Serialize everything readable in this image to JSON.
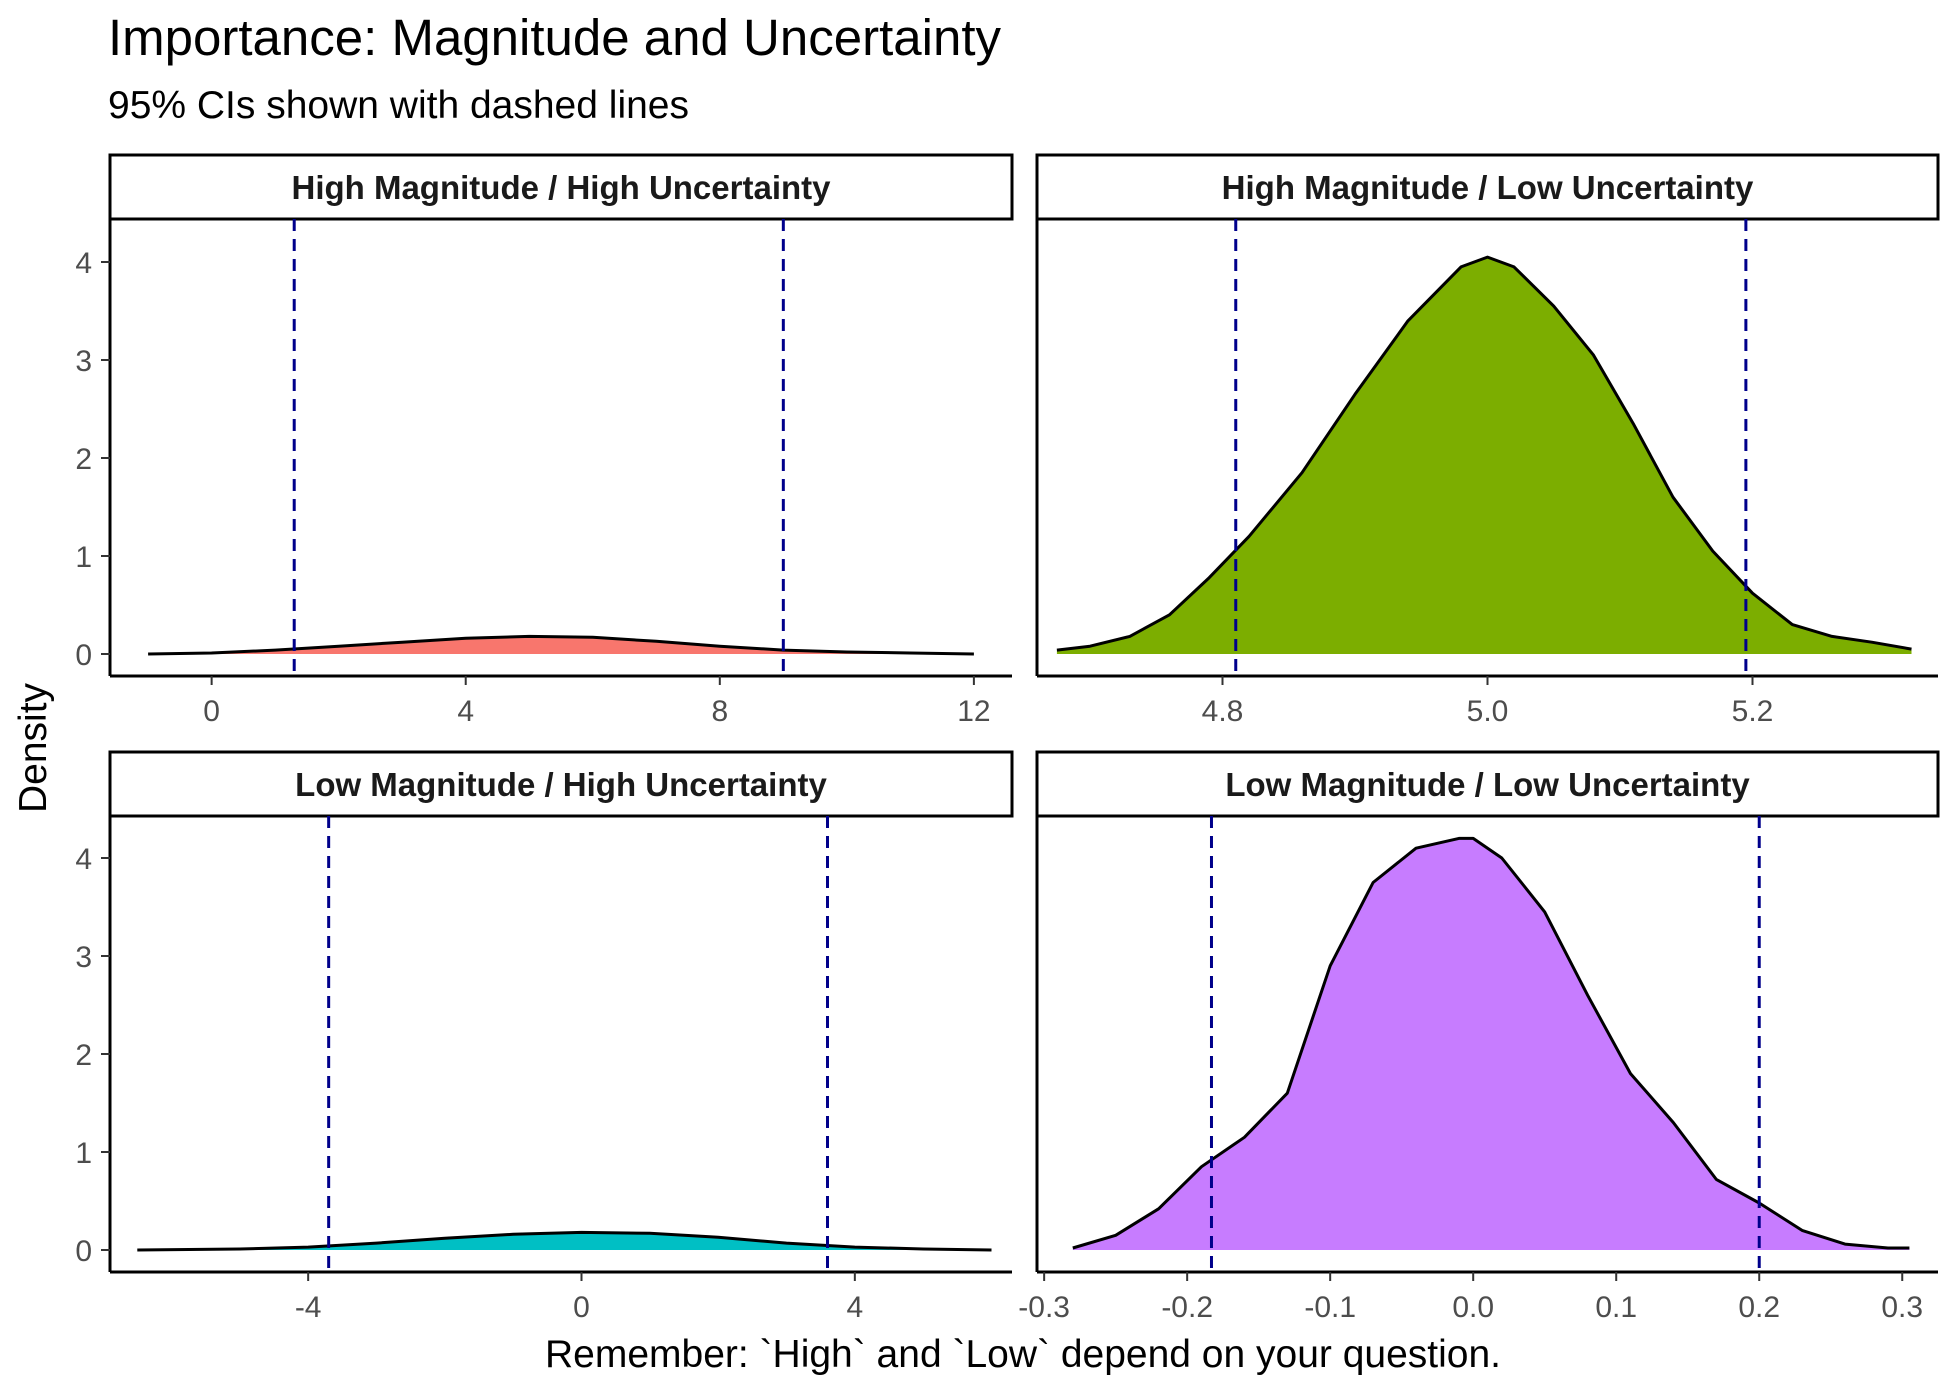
{
  "title": "Importance: Magnitude and Uncertainty",
  "subtitle": "95% CIs shown with dashed lines",
  "colors": {
    "ci_line": "#00008B",
    "outline": "#000000",
    "strip_border": "#000000"
  },
  "chart_data": {
    "type": "area",
    "xlabel": "Remember: `High` and `Low` depend on your question.",
    "ylabel": "Density",
    "ylim": [
      0,
      4.4
    ],
    "yticks": [
      0,
      1,
      2,
      3,
      4
    ],
    "grid": false,
    "layout": "2x2 facets, free x scales, shared y scale",
    "panels": [
      {
        "label": "High Magnitude / High Uncertainty",
        "fill": "#F8766D",
        "xlim": [
          -1.6,
          12.6
        ],
        "xticks": [
          "0",
          "4",
          "8",
          "12"
        ],
        "xtick_values": [
          0,
          4,
          8,
          12
        ],
        "ci": [
          1.3,
          9.0
        ],
        "x": [
          -1.0,
          0,
          1,
          2,
          3,
          4,
          5,
          6,
          7,
          8,
          9,
          10,
          11,
          12
        ],
        "y": [
          0.0,
          0.01,
          0.04,
          0.08,
          0.12,
          0.16,
          0.18,
          0.17,
          0.13,
          0.08,
          0.04,
          0.02,
          0.01,
          0.0
        ]
      },
      {
        "label": "High Magnitude / Low Uncertainty",
        "fill": "#7CAE00",
        "xlim": [
          4.66,
          5.34
        ],
        "xticks": [
          "4.8",
          "5.0",
          "5.2"
        ],
        "xtick_values": [
          4.8,
          5.0,
          5.2
        ],
        "ci": [
          4.81,
          5.195
        ],
        "x": [
          4.675,
          4.7,
          4.73,
          4.76,
          4.79,
          4.82,
          4.86,
          4.9,
          4.94,
          4.98,
          5.0,
          5.02,
          5.05,
          5.08,
          5.11,
          5.14,
          5.17,
          5.2,
          5.23,
          5.26,
          5.29,
          5.32
        ],
        "y": [
          0.04,
          0.08,
          0.18,
          0.4,
          0.78,
          1.2,
          1.85,
          2.65,
          3.4,
          3.95,
          4.05,
          3.95,
          3.55,
          3.05,
          2.35,
          1.6,
          1.05,
          0.62,
          0.3,
          0.18,
          0.12,
          0.05
        ]
      },
      {
        "label": "Low Magnitude / High Uncertainty",
        "fill": "#00BFC4",
        "xlim": [
          -6.9,
          6.3
        ],
        "xticks": [
          "-4",
          "0",
          "4"
        ],
        "xtick_values": [
          -4,
          0,
          4
        ],
        "ci": [
          -3.7,
          3.6
        ],
        "x": [
          -6.5,
          -5,
          -4,
          -3,
          -2,
          -1,
          0,
          1,
          2,
          3,
          4,
          5,
          6
        ],
        "y": [
          0.0,
          0.01,
          0.03,
          0.07,
          0.12,
          0.16,
          0.18,
          0.17,
          0.13,
          0.07,
          0.03,
          0.01,
          0.0
        ]
      },
      {
        "label": "Low Magnitude / Low Uncertainty",
        "fill": "#C77CFF",
        "xlim": [
          -0.305,
          0.325
        ],
        "xticks": [
          "-0.3",
          "-0.2",
          "-0.1",
          "0.0",
          "0.1",
          "0.2",
          "0.3"
        ],
        "xtick_values": [
          -0.3,
          -0.2,
          -0.1,
          0.0,
          0.1,
          0.2,
          0.3
        ],
        "ci": [
          -0.183,
          0.2
        ],
        "x": [
          -0.28,
          -0.25,
          -0.22,
          -0.19,
          -0.16,
          -0.13,
          -0.1,
          -0.07,
          -0.04,
          -0.01,
          0.0,
          0.02,
          0.05,
          0.08,
          0.11,
          0.14,
          0.17,
          0.2,
          0.23,
          0.26,
          0.29,
          0.305
        ],
        "y": [
          0.02,
          0.15,
          0.42,
          0.85,
          1.15,
          1.6,
          2.9,
          3.75,
          4.1,
          4.2,
          4.2,
          4.0,
          3.45,
          2.6,
          1.8,
          1.3,
          0.72,
          0.48,
          0.2,
          0.06,
          0.02,
          0.02
        ]
      }
    ]
  }
}
